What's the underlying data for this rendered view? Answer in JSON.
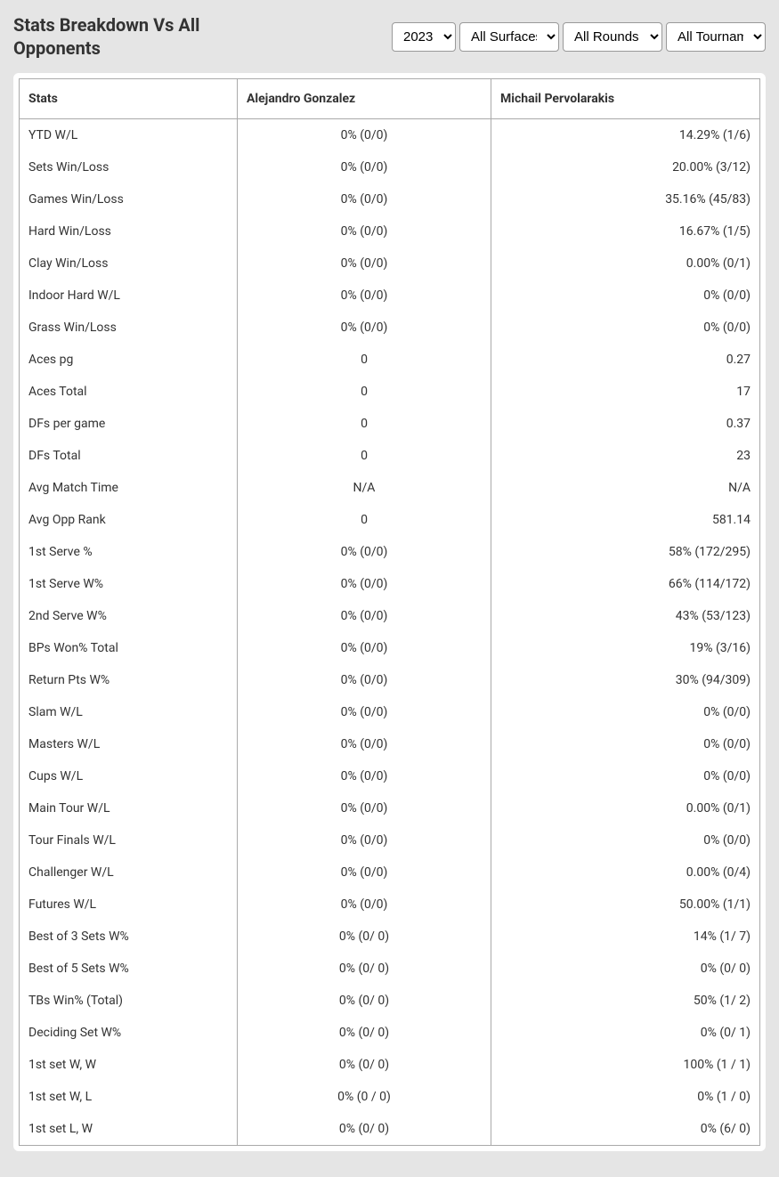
{
  "header": {
    "title": "Stats Breakdown Vs All Opponents",
    "filters": {
      "year": "2023",
      "surface": "All Surfaces",
      "rounds": "All Rounds",
      "tournaments": "All Tournaments"
    }
  },
  "table": {
    "columns": [
      "Stats",
      "Alejandro Gonzalez",
      "Michail Pervolarakis"
    ],
    "rows": [
      [
        "YTD W/L",
        "0% (0/0)",
        "14.29% (1/6)"
      ],
      [
        "Sets Win/Loss",
        "0% (0/0)",
        "20.00% (3/12)"
      ],
      [
        "Games Win/Loss",
        "0% (0/0)",
        "35.16% (45/83)"
      ],
      [
        "Hard Win/Loss",
        "0% (0/0)",
        "16.67% (1/5)"
      ],
      [
        "Clay Win/Loss",
        "0% (0/0)",
        "0.00% (0/1)"
      ],
      [
        "Indoor Hard W/L",
        "0% (0/0)",
        "0% (0/0)"
      ],
      [
        "Grass Win/Loss",
        "0% (0/0)",
        "0% (0/0)"
      ],
      [
        "Aces pg",
        "0",
        "0.27"
      ],
      [
        "Aces Total",
        "0",
        "17"
      ],
      [
        "DFs per game",
        "0",
        "0.37"
      ],
      [
        "DFs Total",
        "0",
        "23"
      ],
      [
        "Avg Match Time",
        "N/A",
        "N/A"
      ],
      [
        "Avg Opp Rank",
        "0",
        "581.14"
      ],
      [
        "1st Serve %",
        "0% (0/0)",
        "58% (172/295)"
      ],
      [
        "1st Serve W%",
        "0% (0/0)",
        "66% (114/172)"
      ],
      [
        "2nd Serve W%",
        "0% (0/0)",
        "43% (53/123)"
      ],
      [
        "BPs Won% Total",
        "0% (0/0)",
        "19% (3/16)"
      ],
      [
        "Return Pts W%",
        "0% (0/0)",
        "30% (94/309)"
      ],
      [
        "Slam W/L",
        "0% (0/0)",
        "0% (0/0)"
      ],
      [
        "Masters W/L",
        "0% (0/0)",
        "0% (0/0)"
      ],
      [
        "Cups W/L",
        "0% (0/0)",
        "0% (0/0)"
      ],
      [
        "Main Tour W/L",
        "0% (0/0)",
        "0.00% (0/1)"
      ],
      [
        "Tour Finals W/L",
        "0% (0/0)",
        "0% (0/0)"
      ],
      [
        "Challenger W/L",
        "0% (0/0)",
        "0.00% (0/4)"
      ],
      [
        "Futures W/L",
        "0% (0/0)",
        "50.00% (1/1)"
      ],
      [
        "Best of 3 Sets W%",
        "0% (0/ 0)",
        "14% (1/ 7)"
      ],
      [
        "Best of 5 Sets W%",
        "0% (0/ 0)",
        "0% (0/ 0)"
      ],
      [
        "TBs Win% (Total)",
        "0% (0/ 0)",
        "50% (1/ 2)"
      ],
      [
        "Deciding Set W%",
        "0% (0/ 0)",
        "0% (0/ 1)"
      ],
      [
        "1st set W, W",
        "0% (0/ 0)",
        "100% (1 / 1)"
      ],
      [
        "1st set W, L",
        "0% (0 / 0)",
        "0% (1 / 0)"
      ],
      [
        "1st set L, W",
        "0% (0/ 0)",
        "0% (6/ 0)"
      ]
    ]
  }
}
